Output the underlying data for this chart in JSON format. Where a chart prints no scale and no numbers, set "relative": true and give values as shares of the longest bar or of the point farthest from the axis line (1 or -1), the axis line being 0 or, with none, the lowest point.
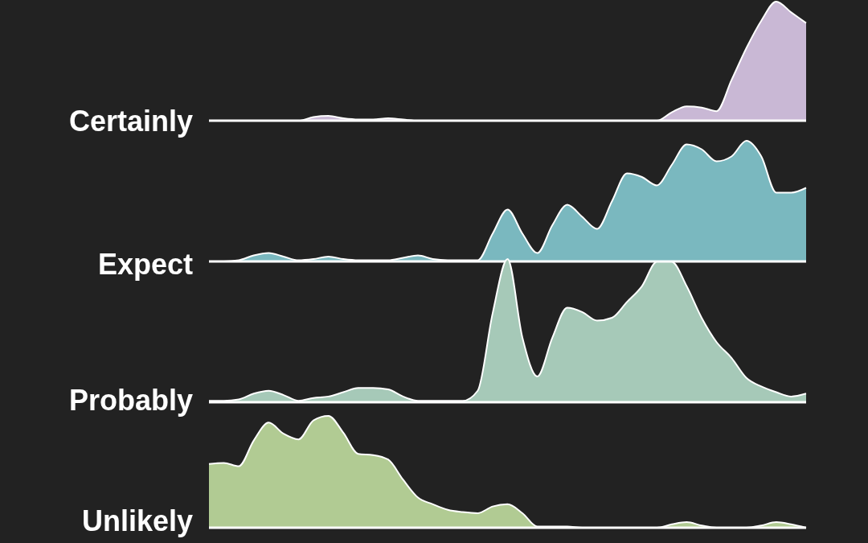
{
  "chart_data": [
    {
      "type": "area",
      "relative": true,
      "categories": [
        null,
        null,
        null,
        null,
        null,
        null,
        null,
        null,
        null,
        null,
        null,
        null,
        null,
        null,
        null,
        null,
        null,
        null,
        null,
        null,
        null,
        null,
        null,
        null,
        null,
        null,
        null,
        null,
        null,
        null,
        null,
        null,
        null,
        null,
        null,
        null,
        null,
        null,
        null,
        null,
        null
      ],
      "series": [
        {
          "name": "Certainly",
          "color": "#c9b8d5",
          "values": [
            0,
            0,
            0,
            0,
            0,
            0,
            0,
            0.03,
            0.04,
            0.02,
            0.01,
            0.01,
            0.02,
            0.01,
            0,
            0,
            0,
            0,
            0,
            0,
            0,
            0,
            0,
            0,
            0,
            0,
            0,
            0,
            0,
            0,
            0,
            0.07,
            0.12,
            0.11,
            0.08,
            0.34,
            0.61,
            0.84,
            1,
            0.91,
            0.82
          ]
        }
      ]
    },
    {
      "type": "area",
      "relative": true,
      "categories": [
        null,
        null,
        null,
        null,
        null,
        null,
        null,
        null,
        null,
        null,
        null,
        null,
        null,
        null,
        null,
        null,
        null,
        null,
        null,
        null,
        null,
        null,
        null,
        null,
        null,
        null,
        null,
        null,
        null,
        null,
        null,
        null,
        null,
        null,
        null,
        null,
        null,
        null,
        null,
        null,
        null
      ],
      "series": [
        {
          "name": "Expect",
          "color": "#7ab8bf",
          "values": [
            0,
            0,
            0.01,
            0.05,
            0.07,
            0.04,
            0.01,
            0.02,
            0.04,
            0.02,
            0.01,
            0.01,
            0.01,
            0.03,
            0.05,
            0.02,
            0.01,
            0.01,
            0.01,
            0.23,
            0.43,
            0.23,
            0.07,
            0.3,
            0.47,
            0.37,
            0.27,
            0.5,
            0.73,
            0.7,
            0.63,
            0.8,
            0.97,
            0.93,
            0.83,
            0.87,
            1,
            0.87,
            0.57,
            0.57,
            0.61
          ]
        }
      ]
    },
    {
      "type": "area",
      "relative": true,
      "categories": [
        null,
        null,
        null,
        null,
        null,
        null,
        null,
        null,
        null,
        null,
        null,
        null,
        null,
        null,
        null,
        null,
        null,
        null,
        null,
        null,
        null,
        null,
        null,
        null,
        null,
        null,
        null,
        null,
        null,
        null,
        null,
        null,
        null,
        null,
        null,
        null,
        null,
        null,
        null,
        null,
        null
      ],
      "series": [
        {
          "name": "Probably",
          "color": "#a6c9b8",
          "values": [
            0.01,
            0.01,
            0.02,
            0.06,
            0.08,
            0.05,
            0.01,
            0.03,
            0.04,
            0.07,
            0.1,
            0.1,
            0.09,
            0.04,
            0.01,
            0.01,
            0.01,
            0.01,
            0.08,
            0.62,
            1,
            0.45,
            0.18,
            0.45,
            0.66,
            0.63,
            0.57,
            0.59,
            0.7,
            0.81,
            0.98,
            0.98,
            0.81,
            0.59,
            0.42,
            0.31,
            0.17,
            0.11,
            0.07,
            0.04,
            0.06
          ]
        }
      ]
    },
    {
      "type": "area",
      "relative": true,
      "categories": [
        null,
        null,
        null,
        null,
        null,
        null,
        null,
        null,
        null,
        null,
        null,
        null,
        null,
        null,
        null,
        null,
        null,
        null,
        null,
        null,
        null,
        null,
        null,
        null,
        null,
        null,
        null,
        null,
        null,
        null,
        null,
        null,
        null,
        null,
        null,
        null,
        null,
        null,
        null,
        null,
        null
      ],
      "series": [
        {
          "name": "Unlikely",
          "color": "#b1cb93",
          "values": [
            0.57,
            0.58,
            0.55,
            0.78,
            0.94,
            0.84,
            0.79,
            0.96,
            1,
            0.85,
            0.66,
            0.65,
            0.61,
            0.43,
            0.27,
            0.21,
            0.16,
            0.14,
            0.13,
            0.19,
            0.21,
            0.13,
            0.01,
            0.01,
            0.01,
            0,
            0,
            0,
            0,
            0,
            0,
            0.03,
            0.05,
            0.02,
            0,
            0,
            0,
            0.02,
            0.05,
            0.03,
            0
          ]
        }
      ]
    }
  ]
}
